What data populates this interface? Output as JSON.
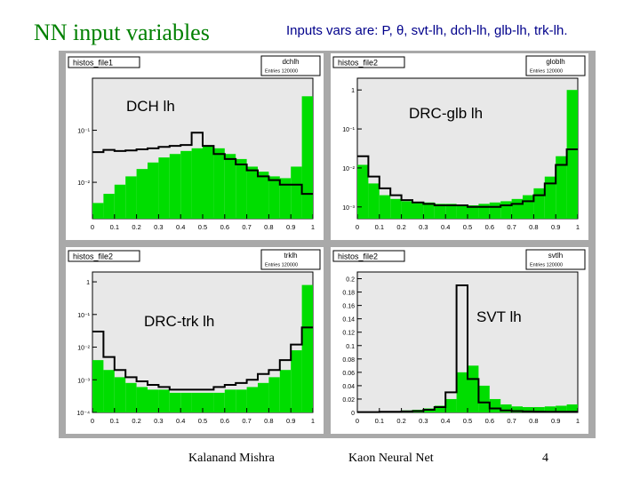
{
  "slide": {
    "title": "NN input variables",
    "subtitle": "Inputs vars are: P, θ, svt-lh, dch-lh, glb-lh, trk-lh.",
    "footer_author": "Kalanand Mishra",
    "footer_title": "Kaon Neural Net",
    "page_number": "4"
  },
  "colors": {
    "title": "#008000",
    "subtitle": "#00008b",
    "fill": "#00dd00",
    "frame": "#e8e8e8",
    "background": "#a9a9a9"
  },
  "chart_data": [
    {
      "type": "area",
      "file_tag": "histos_file1",
      "stat_name": "dchlh",
      "stat_entries": "Entries 120000",
      "label": "DCH lh",
      "yscale": "log",
      "ytick_labels": [
        "10⁻¹",
        "10⁻²"
      ],
      "ytick_values": [
        0.1,
        0.01
      ],
      "xtick_labels": [
        "0",
        "0.1",
        "0.2",
        "0.3",
        "0.4",
        "0.5",
        "0.6",
        "0.7",
        "0.8",
        "0.9",
        "1"
      ],
      "xlim": [
        0,
        1
      ],
      "ylim": [
        0.002,
        1
      ],
      "x": [
        0.025,
        0.075,
        0.125,
        0.175,
        0.225,
        0.275,
        0.325,
        0.375,
        0.425,
        0.475,
        0.525,
        0.575,
        0.625,
        0.675,
        0.725,
        0.775,
        0.825,
        0.875,
        0.925,
        0.975
      ],
      "series": [
        {
          "name": "green",
          "values": [
            0.004,
            0.006,
            0.009,
            0.013,
            0.018,
            0.024,
            0.03,
            0.035,
            0.04,
            0.045,
            0.05,
            0.045,
            0.035,
            0.028,
            0.02,
            0.016,
            0.013,
            0.012,
            0.02,
            0.45
          ]
        },
        {
          "name": "black",
          "values": [
            0.038,
            0.042,
            0.04,
            0.041,
            0.043,
            0.045,
            0.048,
            0.05,
            0.052,
            0.09,
            0.05,
            0.035,
            0.028,
            0.022,
            0.017,
            0.013,
            0.011,
            0.009,
            0.009,
            0.006
          ]
        }
      ]
    },
    {
      "type": "area",
      "file_tag": "histos_file2",
      "stat_name": "globlh",
      "stat_entries": "Entries 120000",
      "label": "DRC-glb lh",
      "yscale": "log",
      "ytick_labels": [
        "1",
        "10⁻¹",
        "10⁻²",
        "10⁻³"
      ],
      "ytick_values": [
        1,
        0.1,
        0.01,
        0.001
      ],
      "xtick_labels": [
        "0",
        "0.1",
        "0.2",
        "0.3",
        "0.4",
        "0.5",
        "0.6",
        "0.7",
        "0.8",
        "0.9",
        "1"
      ],
      "xlim": [
        0,
        1
      ],
      "ylim": [
        0.0005,
        2
      ],
      "x": [
        0.025,
        0.075,
        0.125,
        0.175,
        0.225,
        0.275,
        0.325,
        0.375,
        0.425,
        0.475,
        0.525,
        0.575,
        0.625,
        0.675,
        0.725,
        0.775,
        0.825,
        0.875,
        0.925,
        0.975
      ],
      "series": [
        {
          "name": "green",
          "values": [
            0.012,
            0.004,
            0.002,
            0.0016,
            0.0014,
            0.0013,
            0.0013,
            0.0012,
            0.0012,
            0.0011,
            0.0011,
            0.0012,
            0.0013,
            0.0014,
            0.0016,
            0.002,
            0.003,
            0.006,
            0.02,
            1.0
          ]
        },
        {
          "name": "black",
          "values": [
            0.02,
            0.006,
            0.003,
            0.002,
            0.0015,
            0.0013,
            0.0012,
            0.0011,
            0.0011,
            0.0011,
            0.001,
            0.001,
            0.001,
            0.0011,
            0.0012,
            0.0014,
            0.002,
            0.004,
            0.012,
            0.03
          ]
        }
      ]
    },
    {
      "type": "area",
      "file_tag": "histos_file2",
      "stat_name": "trklh",
      "stat_entries": "Entries 120000",
      "label": "DRC-trk lh",
      "yscale": "log",
      "ytick_labels": [
        "1",
        "10⁻¹",
        "10⁻²",
        "10⁻³",
        "10⁻⁴"
      ],
      "ytick_values": [
        1,
        0.1,
        0.01,
        0.001,
        0.0001
      ],
      "xtick_labels": [
        "0",
        "0.1",
        "0.2",
        "0.3",
        "0.4",
        "0.5",
        "0.6",
        "0.7",
        "0.8",
        "0.9",
        "1"
      ],
      "xlim": [
        0,
        1
      ],
      "ylim": [
        0.0001,
        2
      ],
      "x": [
        0.025,
        0.075,
        0.125,
        0.175,
        0.225,
        0.275,
        0.325,
        0.375,
        0.425,
        0.475,
        0.525,
        0.575,
        0.625,
        0.675,
        0.725,
        0.775,
        0.825,
        0.875,
        0.925,
        0.975
      ],
      "series": [
        {
          "name": "green",
          "values": [
            0.004,
            0.002,
            0.0012,
            0.0008,
            0.0006,
            0.0005,
            0.0005,
            0.0004,
            0.0004,
            0.0004,
            0.0004,
            0.0004,
            0.0005,
            0.0005,
            0.0006,
            0.0008,
            0.0012,
            0.002,
            0.008,
            0.8
          ]
        },
        {
          "name": "black",
          "values": [
            0.03,
            0.005,
            0.002,
            0.0012,
            0.0009,
            0.0007,
            0.0006,
            0.0005,
            0.0005,
            0.0005,
            0.0005,
            0.0006,
            0.0007,
            0.0008,
            0.001,
            0.0015,
            0.002,
            0.004,
            0.012,
            0.04
          ]
        }
      ]
    },
    {
      "type": "area",
      "file_tag": "histos_file2",
      "stat_name": "svtlh",
      "stat_entries": "Entries 120000",
      "label": "SVT lh",
      "yscale": "linear",
      "ytick_labels": [
        "0",
        "0.02",
        "0.04",
        "0.06",
        "0.08",
        "0.1",
        "0.12",
        "0.14",
        "0.16",
        "0.18",
        "0.2"
      ],
      "ytick_values": [
        0,
        0.02,
        0.04,
        0.06,
        0.08,
        0.1,
        0.12,
        0.14,
        0.16,
        0.18,
        0.2
      ],
      "xtick_labels": [
        "0",
        "0.1",
        "0.2",
        "0.3",
        "0.4",
        "0.5",
        "0.6",
        "0.7",
        "0.8",
        "0.9",
        "1"
      ],
      "xlim": [
        0,
        1
      ],
      "ylim": [
        0,
        0.21
      ],
      "x": [
        0.025,
        0.075,
        0.125,
        0.175,
        0.225,
        0.275,
        0.325,
        0.375,
        0.425,
        0.475,
        0.525,
        0.575,
        0.625,
        0.675,
        0.725,
        0.775,
        0.825,
        0.875,
        0.925,
        0.975
      ],
      "series": [
        {
          "name": "green",
          "values": [
            0.001,
            0.001,
            0.001,
            0.002,
            0.003,
            0.004,
            0.006,
            0.01,
            0.02,
            0.06,
            0.07,
            0.04,
            0.02,
            0.012,
            0.009,
            0.008,
            0.008,
            0.009,
            0.01,
            0.012
          ]
        },
        {
          "name": "black",
          "values": [
            0.0005,
            0.0005,
            0.001,
            0.001,
            0.0015,
            0.002,
            0.004,
            0.008,
            0.03,
            0.19,
            0.05,
            0.015,
            0.006,
            0.003,
            0.002,
            0.0015,
            0.0012,
            0.001,
            0.001,
            0.001
          ]
        }
      ]
    }
  ]
}
